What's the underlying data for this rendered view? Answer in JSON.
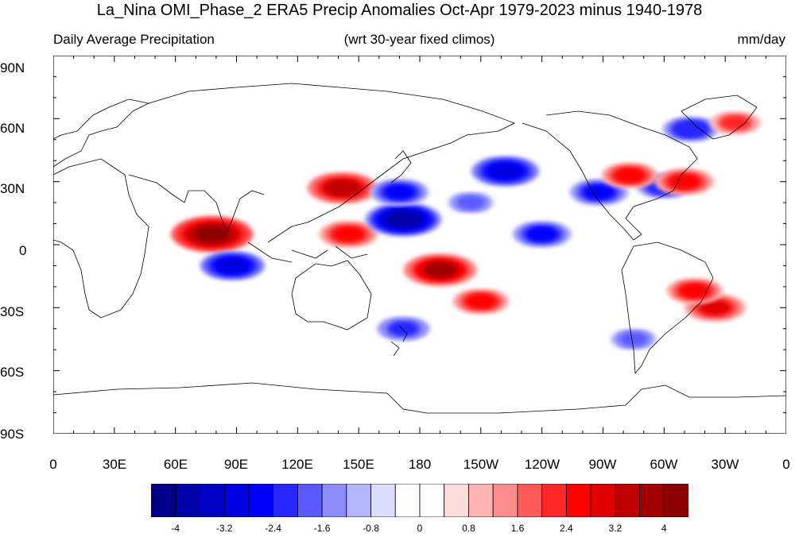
{
  "title": "La_Nina OMI_Phase_2 ERA5 Precip Anomalies Oct-Apr 1979-2023 minus 1940-1978",
  "subtitle_left": "Daily Average Precipitation",
  "subtitle_center": "(wrt 30-year fixed climos)",
  "subtitle_right": "mm/day",
  "lat_labels": [
    "90N",
    "60N",
    "30N",
    "0",
    "30S",
    "60S",
    "90S"
  ],
  "lon_labels": [
    "0",
    "30E",
    "60E",
    "90E",
    "120E",
    "150E",
    "180",
    "150W",
    "120W",
    "90W",
    "60W",
    "30W",
    "0"
  ],
  "colorbar": {
    "labels": [
      "-4",
      "-3.2",
      "-2.4",
      "-1.6",
      "-0.8",
      "0",
      "0.8",
      "1.6",
      "2.4",
      "3.2",
      "4"
    ],
    "colors": [
      "#00008b",
      "#0000a8",
      "#0000c8",
      "#0000e0",
      "#0000ff",
      "#2828ff",
      "#5a5aff",
      "#8c8cff",
      "#b4b4ff",
      "#dcdcff",
      "#ffffff",
      "#ffffff",
      "#ffdcdc",
      "#ffb4b4",
      "#ff8c8c",
      "#ff5a5a",
      "#ff2828",
      "#ff0000",
      "#e00000",
      "#c00000",
      "#a00000",
      "#8b0000"
    ]
  },
  "map": {
    "anomaly_regions": [
      {
        "name": "north-indian-ocean-wet",
        "lon": 78,
        "lat": 5,
        "value": 4.2
      },
      {
        "name": "western-pacific-30n-wet",
        "lon": 142,
        "lat": 27,
        "value": 3.4
      },
      {
        "name": "maritime-to-dateline-wet",
        "lon": 145,
        "lat": 5,
        "value": 2.6
      },
      {
        "name": "south-pacific-convergence-wet",
        "lon": 190,
        "lat": -12,
        "value": 3.6
      },
      {
        "name": "south-pacific-25s-wet",
        "lon": 210,
        "lat": -27,
        "value": 2.4
      },
      {
        "name": "central-pacific-20n-dry",
        "lon": 172,
        "lat": 12,
        "value": -3.8
      },
      {
        "name": "north-pacific-dry",
        "lon": 170,
        "lat": 25,
        "value": -2.6
      },
      {
        "name": "northeast-pacific-dry",
        "lon": 222,
        "lat": 35,
        "value": -3.2
      },
      {
        "name": "equatorial-east-pacific-dry",
        "lon": 240,
        "lat": 5,
        "value": -2.6
      },
      {
        "name": "indian-ocean-10s-dry",
        "lon": 88,
        "lat": -10,
        "value": -3.0
      },
      {
        "name": "gulf-of-mexico-dry",
        "lon": 268,
        "lat": 25,
        "value": -2.6
      },
      {
        "name": "north-atlantic-dry",
        "lon": 300,
        "lat": 28,
        "value": -2.4
      },
      {
        "name": "north-atlantic-30n-wet",
        "lon": 310,
        "lat": 30,
        "value": 2.6
      },
      {
        "name": "eastern-us-wet",
        "lon": 283,
        "lat": 33,
        "value": 2.4
      },
      {
        "name": "south-atlantic-wet",
        "lon": 325,
        "lat": -30,
        "value": 2.8
      },
      {
        "name": "southeast-brazil-wet",
        "lon": 315,
        "lat": -22,
        "value": 2.4
      },
      {
        "name": "labrador-sea-dry",
        "lon": 313,
        "lat": 55,
        "value": -2.4
      },
      {
        "name": "north-atlantic-60n-wet",
        "lon": 335,
        "lat": 58,
        "value": 2.0
      },
      {
        "name": "new-zealand-dry",
        "lon": 172,
        "lat": -40,
        "value": -2.2
      },
      {
        "name": "south-america-west-dry",
        "lon": 285,
        "lat": -45,
        "value": -1.8
      },
      {
        "name": "ne-pacific-dry-2",
        "lon": 205,
        "lat": 20,
        "value": -1.8
      }
    ]
  }
}
